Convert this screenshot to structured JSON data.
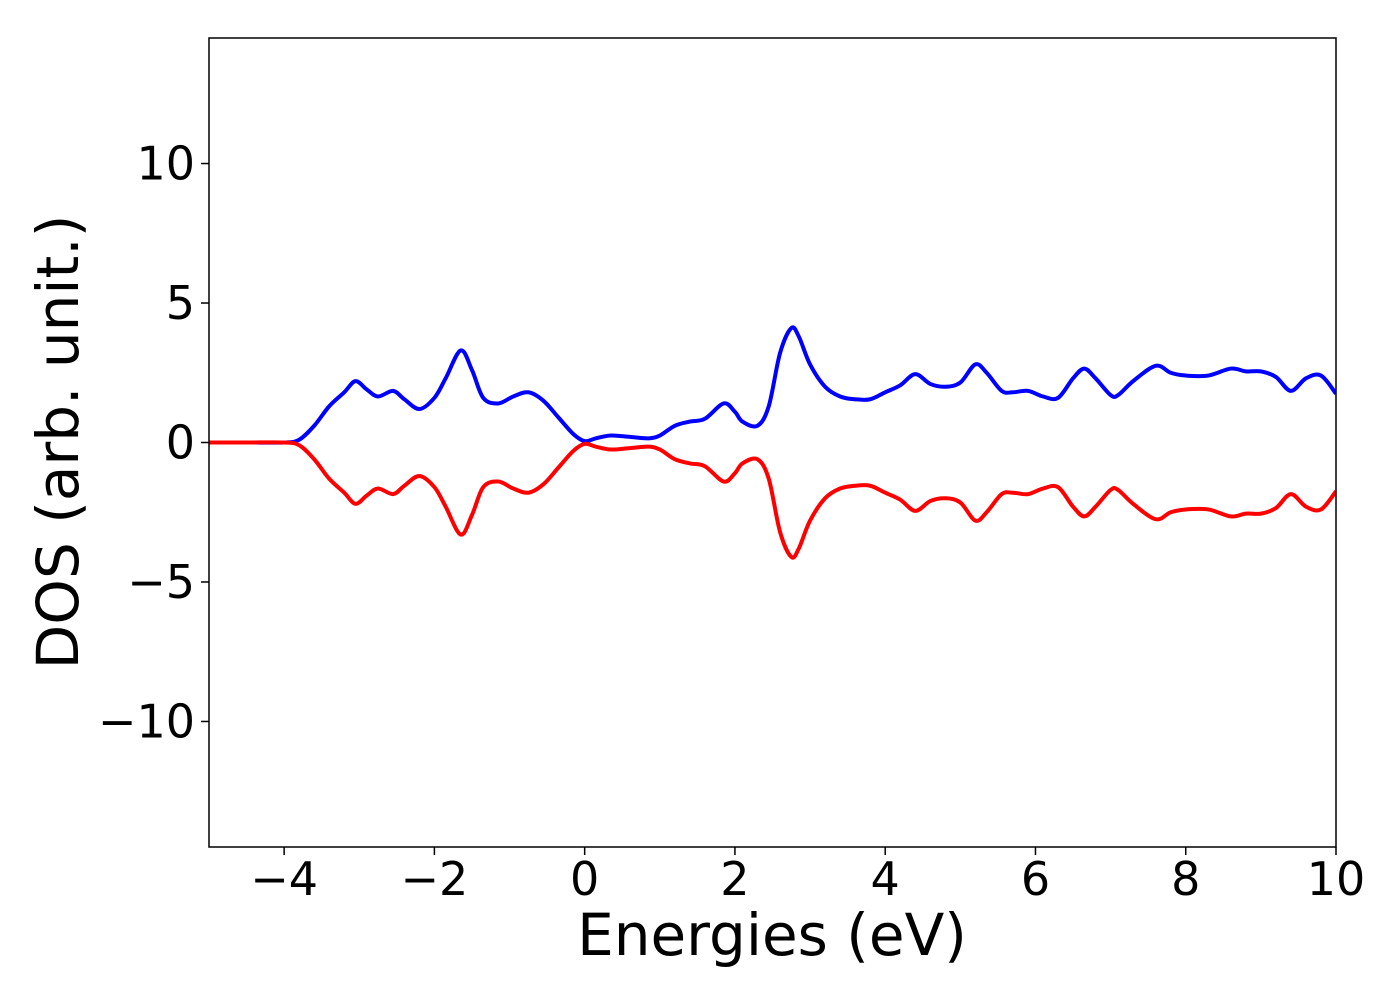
{
  "chart_data": {
    "type": "line",
    "title": "",
    "xlabel": "Energies (eV)",
    "ylabel": "DOS (arb. unit.)",
    "xlim": [
      -5,
      10
    ],
    "ylim": [
      -14.5,
      14.5
    ],
    "grid": false,
    "legend": "none",
    "x_ticks": [
      {
        "value": -4,
        "label": "−4"
      },
      {
        "value": -2,
        "label": "−2"
      },
      {
        "value": 0,
        "label": "0"
      },
      {
        "value": 2,
        "label": "2"
      },
      {
        "value": 4,
        "label": "4"
      },
      {
        "value": 6,
        "label": "6"
      },
      {
        "value": 8,
        "label": "8"
      },
      {
        "value": 10,
        "label": "10"
      }
    ],
    "y_ticks": [
      {
        "value": 10,
        "label": "10"
      },
      {
        "value": 5,
        "label": "5"
      },
      {
        "value": 0,
        "label": "0"
      },
      {
        "value": -5,
        "label": "−5"
      },
      {
        "value": -10,
        "label": "−10"
      }
    ],
    "series": [
      {
        "color": "#0000ff",
        "x": [
          -5,
          -4.5,
          -4.0,
          -3.8,
          -3.6,
          -3.4,
          -3.2,
          -3.05,
          -2.9,
          -2.75,
          -2.55,
          -2.4,
          -2.2,
          -2.0,
          -1.85,
          -1.65,
          -1.5,
          -1.35,
          -1.15,
          -0.95,
          -0.75,
          -0.55,
          -0.35,
          -0.15,
          0.0,
          0.15,
          0.35,
          0.6,
          0.85,
          1.0,
          1.2,
          1.4,
          1.6,
          1.85,
          2.0,
          2.1,
          2.3,
          2.45,
          2.6,
          2.75,
          2.85,
          3.0,
          3.2,
          3.4,
          3.6,
          3.8,
          4.0,
          4.2,
          4.4,
          4.6,
          4.8,
          5.0,
          5.2,
          5.35,
          5.55,
          5.7,
          5.9,
          6.1,
          6.3,
          6.5,
          6.65,
          6.8,
          7.0,
          7.1,
          7.3,
          7.6,
          7.8,
          8.0,
          8.3,
          8.6,
          8.8,
          9.0,
          9.2,
          9.4,
          9.6,
          9.8,
          10.0
        ],
        "y": [
          0,
          0,
          0,
          0.1,
          0.6,
          1.3,
          1.8,
          2.2,
          1.9,
          1.65,
          1.85,
          1.55,
          1.2,
          1.6,
          2.3,
          3.3,
          2.6,
          1.6,
          1.4,
          1.65,
          1.8,
          1.5,
          0.9,
          0.3,
          0.05,
          0.15,
          0.25,
          0.2,
          0.15,
          0.25,
          0.6,
          0.75,
          0.85,
          1.4,
          1.1,
          0.75,
          0.6,
          1.3,
          3.2,
          4.1,
          3.8,
          2.8,
          2.0,
          1.65,
          1.55,
          1.55,
          1.8,
          2.05,
          2.45,
          2.1,
          2.0,
          2.15,
          2.8,
          2.5,
          1.85,
          1.8,
          1.85,
          1.65,
          1.6,
          2.3,
          2.65,
          2.3,
          1.7,
          1.7,
          2.2,
          2.75,
          2.5,
          2.4,
          2.4,
          2.65,
          2.55,
          2.55,
          2.35,
          1.85,
          2.3,
          2.4,
          1.75
        ]
      },
      {
        "color": "#ff0000",
        "x": [
          -5,
          -4.5,
          -4.0,
          -3.8,
          -3.6,
          -3.4,
          -3.2,
          -3.05,
          -2.9,
          -2.75,
          -2.55,
          -2.4,
          -2.2,
          -2.0,
          -1.85,
          -1.65,
          -1.5,
          -1.35,
          -1.15,
          -0.95,
          -0.75,
          -0.55,
          -0.35,
          -0.15,
          0.0,
          0.15,
          0.35,
          0.6,
          0.85,
          1.0,
          1.2,
          1.4,
          1.6,
          1.85,
          2.0,
          2.1,
          2.3,
          2.45,
          2.6,
          2.75,
          2.85,
          3.0,
          3.2,
          3.4,
          3.6,
          3.8,
          4.0,
          4.2,
          4.4,
          4.6,
          4.8,
          5.0,
          5.2,
          5.35,
          5.55,
          5.7,
          5.9,
          6.1,
          6.3,
          6.5,
          6.65,
          6.8,
          7.0,
          7.1,
          7.3,
          7.6,
          7.8,
          8.0,
          8.3,
          8.6,
          8.8,
          9.0,
          9.2,
          9.4,
          9.6,
          9.8,
          10.0
        ],
        "y": [
          0,
          0,
          0,
          -0.1,
          -0.6,
          -1.3,
          -1.8,
          -2.2,
          -1.9,
          -1.65,
          -1.85,
          -1.55,
          -1.2,
          -1.6,
          -2.3,
          -3.3,
          -2.6,
          -1.6,
          -1.4,
          -1.65,
          -1.8,
          -1.5,
          -0.9,
          -0.3,
          -0.05,
          -0.15,
          -0.25,
          -0.2,
          -0.15,
          -0.25,
          -0.6,
          -0.75,
          -0.85,
          -1.4,
          -1.1,
          -0.75,
          -0.6,
          -1.3,
          -3.2,
          -4.1,
          -3.8,
          -2.8,
          -2.0,
          -1.65,
          -1.55,
          -1.55,
          -1.8,
          -2.05,
          -2.45,
          -2.1,
          -2.0,
          -2.15,
          -2.8,
          -2.5,
          -1.85,
          -1.8,
          -1.85,
          -1.65,
          -1.6,
          -2.3,
          -2.65,
          -2.3,
          -1.7,
          -1.7,
          -2.2,
          -2.75,
          -2.5,
          -2.4,
          -2.4,
          -2.65,
          -2.55,
          -2.55,
          -2.35,
          -1.85,
          -2.3,
          -2.4,
          -1.75
        ]
      }
    ]
  }
}
